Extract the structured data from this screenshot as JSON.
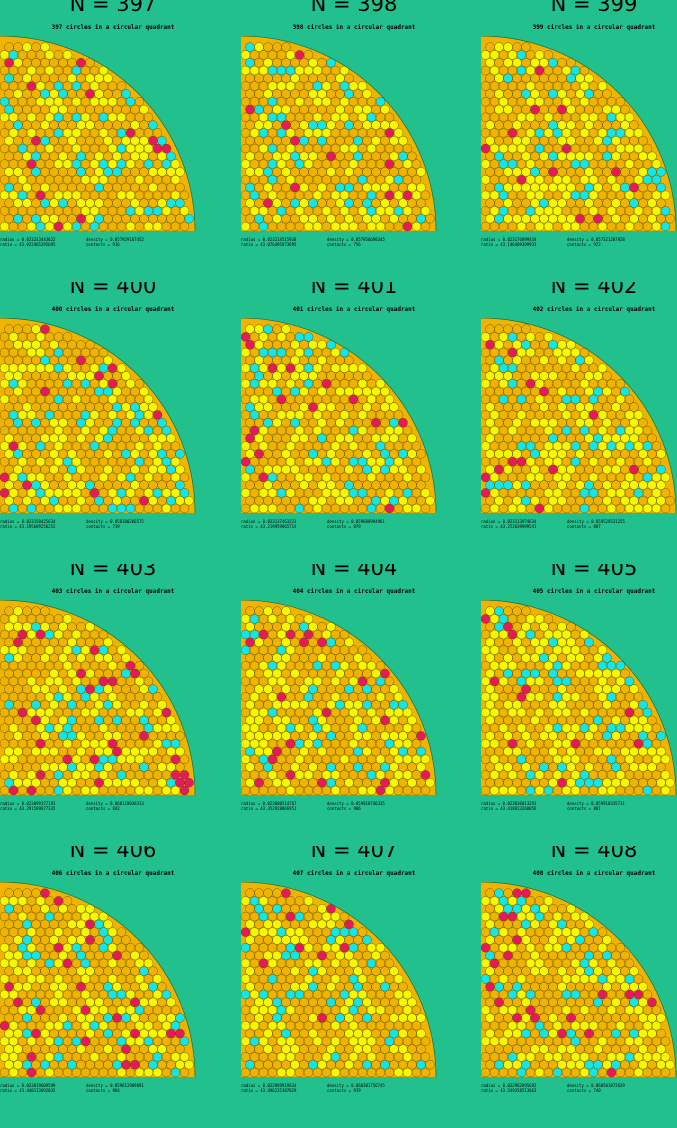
{
  "colors": {
    "background": "#22c08c",
    "orange": "#f0b400",
    "yellow": "#f7f700",
    "cyan": "#12e6e6",
    "magenta": "#e8195a",
    "outline": "#3a3a00"
  },
  "panels": [
    {
      "title": "N = 397",
      "subtitle": "397 circles in a circular quadrant",
      "radius_label": "radius = 0.023243443622",
      "density_label": "density = 0.857929167452",
      "ratio_label": "ratio = 43.022465295695",
      "contacts_label": "contacts = 916"
    },
    {
      "title": "N = 398",
      "subtitle": "398 circles in a circular quadrant",
      "radius_label": "radius = 0.023214515938",
      "density_label": "density = 0.857956690345",
      "ratio_label": "ratio = 43.076495873695",
      "contacts_label": "contacts = 756"
    },
    {
      "title": "N = 399",
      "subtitle": "399 circles in a circular quadrant",
      "radius_label": "radius = 0.023176899434",
      "density_label": "density = 0.857321207928",
      "ratio_label": "ratio = 43.146409309933",
      "contacts_label": "contacts = 922"
    },
    {
      "title": "N = 400",
      "subtitle": "400 circles in a circular quadrant",
      "radius_label": "radius = 0.023150425634",
      "density_label": "density = 0.858100206575",
      "ratio_label": "ratio = 43.195609256252",
      "contacts_label": "contacts = 719"
    },
    {
      "title": "N = 401",
      "subtitle": "401 circles in a circular quadrant",
      "radius_label": "radius = 0.023137463221",
      "density_label": "density = 0.859688994961",
      "ratio_label": "ratio = 43.219959865714",
      "contacts_label": "contacts = 879"
    },
    {
      "title": "N = 402",
      "subtitle": "402 circles in a circular quadrant",
      "radius_label": "radius = 0.023113974634",
      "density_label": "density = 0.859529531255",
      "ratio_label": "ratio = 43.252639999541",
      "contacts_label": "contacts = 807"
    },
    {
      "title": "N = 403",
      "subtitle": "403 circles in a circular quadrant",
      "radius_label": "radius = 0.023099177193",
      "density_label": "density = 0.860118036313",
      "ratio_label": "ratio = 43.291589677335",
      "contacts_label": "contacts = 842"
    },
    {
      "title": "N = 404",
      "subtitle": "404 circles in a circular quadrant",
      "radius_label": "radius = 0.023080514767",
      "density_label": "density = 0.859818746335",
      "ratio_label": "ratio = 43.352928866951",
      "contacts_label": "contacts = 906"
    },
    {
      "title": "N = 405",
      "subtitle": "405 circles in a circular quadrant",
      "radius_label": "radius = 0.023036013291",
      "density_label": "density = 0.859918335731",
      "ratio_label": "ratio = 43.410013260056",
      "contacts_label": "contacts = 801"
    },
    {
      "title": "N = 406",
      "subtitle": "406 circles in a circular quadrant",
      "radius_label": "radius = 0.023019609599",
      "density_label": "density = 0.859612989091",
      "ratio_label": "ratio = 43.440113092035",
      "contacts_label": "contacts = 964"
    },
    {
      "title": "N = 407",
      "subtitle": "407 circles in a circular quadrant",
      "radius_label": "radius = 0.022989919834",
      "density_label": "density = 0.860301756745",
      "ratio_label": "ratio = 43.496215387829",
      "contacts_label": "contacts = 919"
    },
    {
      "title": "N = 408",
      "subtitle": "408 circles in a circular quadrant",
      "radius_label": "radius = 0.022962895692",
      "density_label": "density = 0.860501872629",
      "ratio_label": "ratio = 43.549358513663",
      "contacts_label": "contacts = 740"
    }
  ]
}
